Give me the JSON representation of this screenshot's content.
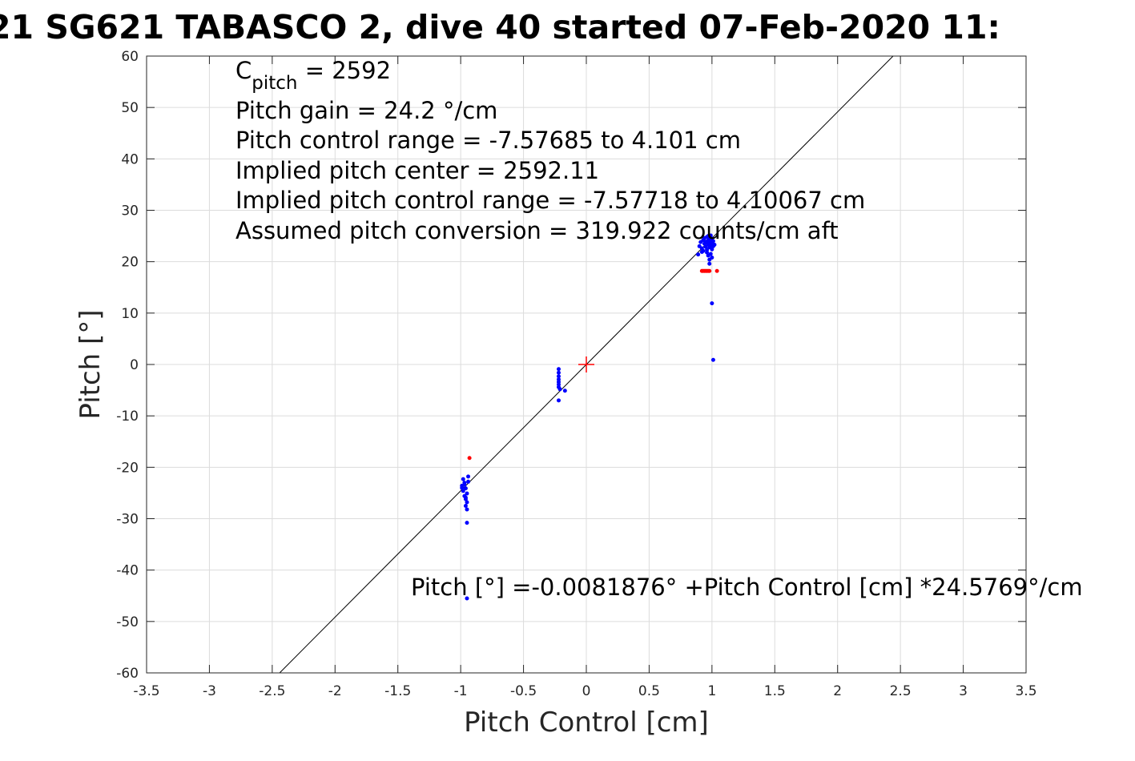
{
  "chart_data": {
    "type": "scatter",
    "title": "21 SG621 TABASCO 2, dive 40 started 07-Feb-2020 11:",
    "xlabel": "Pitch Control [cm]",
    "ylabel": "Pitch [°]",
    "xlim": [
      -3.5,
      3.5
    ],
    "ylim": [
      -60,
      60
    ],
    "x_ticks": [
      -3.5,
      -3,
      -2.5,
      -2,
      -1.5,
      -1,
      -0.5,
      0,
      0.5,
      1,
      1.5,
      2,
      2.5,
      3,
      3.5
    ],
    "x_tick_labels": [
      "-3.5",
      "-3",
      "-2.5",
      "-2",
      "-1.5",
      "-1",
      "-0.5",
      "0",
      "0.5",
      "1",
      "1.5",
      "2",
      "2.5",
      "3",
      "3.5"
    ],
    "y_ticks": [
      60,
      50,
      40,
      30,
      20,
      10,
      0,
      -10,
      -20,
      -30,
      -40,
      -50,
      -60
    ],
    "y_tick_labels": [
      "60",
      "50",
      "40",
      "30",
      "20",
      "10",
      "0",
      "-10",
      "-20",
      "-30",
      "-40",
      "-50",
      "-60"
    ],
    "grid": true,
    "annotations": {
      "c_pitch_main": "C",
      "c_pitch_sub": "pitch",
      "c_pitch_rest": " = 2592",
      "pitch_gain": "Pitch gain = 24.2 °/cm",
      "pitch_control_range": "Pitch control range = -7.57685 to 4.101 cm",
      "implied_center": "Implied pitch center = 2592.11",
      "implied_range": "Implied pitch control range = -7.57718 to 4.10067 cm",
      "assumed_conversion": "Assumed pitch conversion = 319.922 counts/cm aft",
      "fit_equation": "Pitch [°] =-0.0081876° +Pitch Control [cm] *24.5769°/cm"
    },
    "fit_line": {
      "intercept": -0.0081876,
      "slope": 24.5769,
      "color": "#000000"
    },
    "center_marker": {
      "x": 0,
      "y": 0,
      "color": "#ff0000",
      "marker": "plus"
    },
    "series": [
      {
        "color": "#0000ff",
        "points": [
          [
            0.9,
            23.0
          ],
          [
            0.91,
            23.8
          ],
          [
            0.92,
            22.6
          ],
          [
            0.93,
            24.2
          ],
          [
            0.93,
            22.1
          ],
          [
            0.94,
            23.5
          ],
          [
            0.94,
            24.6
          ],
          [
            0.95,
            22.9
          ],
          [
            0.95,
            23.9
          ],
          [
            0.96,
            24.8
          ],
          [
            0.96,
            22.3
          ],
          [
            0.97,
            23.4
          ],
          [
            0.97,
            25.0
          ],
          [
            0.97,
            24.1
          ],
          [
            0.98,
            22.8
          ],
          [
            0.98,
            23.7
          ],
          [
            0.98,
            24.6
          ],
          [
            0.99,
            23.1
          ],
          [
            0.99,
            24.3
          ],
          [
            0.99,
            25.1
          ],
          [
            1.0,
            22.4
          ],
          [
            1.0,
            23.6
          ],
          [
            1.0,
            24.5
          ],
          [
            1.01,
            23.0
          ],
          [
            1.01,
            24.0
          ],
          [
            1.02,
            23.3
          ],
          [
            0.96,
            21.8
          ],
          [
            0.97,
            21.2
          ],
          [
            0.98,
            20.4
          ],
          [
            0.98,
            19.6
          ],
          [
            0.99,
            21.5
          ],
          [
            1.0,
            20.8
          ],
          [
            0.89,
            21.4
          ],
          [
            0.92,
            21.9
          ],
          [
            1.0,
            11.9
          ],
          [
            1.01,
            0.9
          ],
          [
            -0.22,
            -0.9
          ],
          [
            -0.22,
            -1.6
          ],
          [
            -0.22,
            -2.3
          ],
          [
            -0.22,
            -2.9
          ],
          [
            -0.22,
            -3.4
          ],
          [
            -0.22,
            -3.9
          ],
          [
            -0.22,
            -4.4
          ],
          [
            -0.21,
            -4.8
          ],
          [
            -0.22,
            -7.0
          ],
          [
            -0.17,
            -5.1
          ],
          [
            -0.98,
            -22.3
          ],
          [
            -0.97,
            -23.0
          ],
          [
            -0.99,
            -23.6
          ],
          [
            -0.96,
            -24.1
          ],
          [
            -0.98,
            -24.6
          ],
          [
            -0.95,
            -25.1
          ],
          [
            -0.97,
            -25.6
          ],
          [
            -0.96,
            -26.2
          ],
          [
            -0.95,
            -26.8
          ],
          [
            -0.96,
            -27.5
          ],
          [
            -0.95,
            -28.2
          ],
          [
            -0.99,
            -24.0
          ],
          [
            -0.94,
            -22.8
          ],
          [
            -0.94,
            -21.8
          ],
          [
            -0.95,
            -30.8
          ],
          [
            -0.95,
            -45.5
          ],
          [
            -0.97,
            -23.4
          ],
          [
            -0.96,
            -25.9
          ]
        ]
      },
      {
        "color": "#ff0000",
        "points": [
          [
            -0.93,
            -18.2
          ],
          [
            0.92,
            18.2
          ],
          [
            0.93,
            18.2
          ],
          [
            0.94,
            18.2
          ],
          [
            0.95,
            18.2
          ],
          [
            0.96,
            18.2
          ],
          [
            0.97,
            18.2
          ],
          [
            0.98,
            18.2
          ],
          [
            1.04,
            18.2
          ]
        ]
      }
    ]
  }
}
